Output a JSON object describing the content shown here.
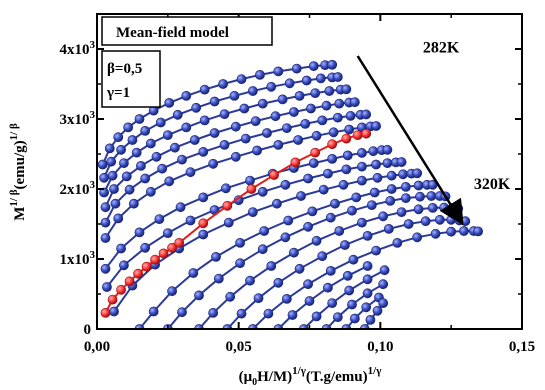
{
  "chart_data": {
    "type": "scatter",
    "title": "Mean-field model",
    "xlabel_parts": [
      "(μ",
      "0",
      "H/M)",
      "1/γ",
      "(T.g/emu)",
      "1/γ"
    ],
    "ylabel_parts": [
      "M",
      "1/ β",
      "(emu/g)",
      "1/ β"
    ],
    "xlim": [
      0.0,
      0.15
    ],
    "ylim": [
      0,
      4500
    ],
    "x_ticks": [
      0.0,
      0.05,
      0.1,
      0.15
    ],
    "x_tick_labels": [
      "0,00",
      "0,05",
      "0,10",
      "0,15"
    ],
    "y_ticks": [
      0,
      1000,
      2000,
      3000,
      4000
    ],
    "y_tick_labels": [
      "0",
      "1x10",
      "2x10",
      "3x10",
      "4x10"
    ],
    "y_tick_exponent": "3",
    "params": [
      "β=0,5",
      "γ=1"
    ],
    "annotations": [
      {
        "text": "282K",
        "x": 0.115,
        "y": 3950
      },
      {
        "text": "320K",
        "x": 0.133,
        "y": 2000
      }
    ],
    "arrow": {
      "x1": 0.092,
      "y1": 3900,
      "x2": 0.128,
      "y2": 1570
    },
    "colors": {
      "blue": "#2b3a99",
      "red": "#e02020",
      "marker_blue": "#3a4fc4",
      "marker_red": "#ff3b3b"
    },
    "series": [
      {
        "x": [
          0.002,
          0.0045,
          0.0075,
          0.011,
          0.015,
          0.02,
          0.0255,
          0.0315,
          0.038,
          0.0445,
          0.051,
          0.0575,
          0.064,
          0.0705,
          0.0765,
          0.0805,
          0.083
        ],
        "y": [
          2350,
          2580,
          2740,
          2880,
          3000,
          3120,
          3230,
          3330,
          3420,
          3500,
          3570,
          3630,
          3680,
          3720,
          3755,
          3770,
          3775
        ]
      },
      {
        "x": [
          0.0025,
          0.005,
          0.0085,
          0.0125,
          0.017,
          0.0225,
          0.0285,
          0.035,
          0.0415,
          0.0485,
          0.055,
          0.0615,
          0.068,
          0.074,
          0.079,
          0.083,
          0.085
        ],
        "y": [
          2160,
          2390,
          2560,
          2700,
          2830,
          2950,
          3060,
          3160,
          3250,
          3330,
          3400,
          3460,
          3510,
          3550,
          3580,
          3595,
          3600
        ]
      },
      {
        "x": [
          0.0025,
          0.0055,
          0.0095,
          0.014,
          0.019,
          0.025,
          0.0315,
          0.038,
          0.045,
          0.052,
          0.0585,
          0.0655,
          0.0715,
          0.077,
          0.082,
          0.086,
          0.088
        ],
        "y": [
          1950,
          2190,
          2370,
          2520,
          2650,
          2770,
          2880,
          2980,
          3070,
          3150,
          3220,
          3280,
          3330,
          3370,
          3400,
          3420,
          3425
        ]
      },
      {
        "x": [
          0.003,
          0.006,
          0.0105,
          0.0155,
          0.021,
          0.0275,
          0.0345,
          0.0415,
          0.049,
          0.056,
          0.063,
          0.0695,
          0.0755,
          0.081,
          0.0855,
          0.089,
          0.091
        ],
        "y": [
          1740,
          2000,
          2180,
          2330,
          2460,
          2590,
          2700,
          2800,
          2890,
          2970,
          3040,
          3100,
          3150,
          3190,
          3220,
          3235,
          3240
        ]
      },
      {
        "x": [
          0.003,
          0.0065,
          0.0115,
          0.017,
          0.023,
          0.03,
          0.0375,
          0.045,
          0.0525,
          0.06,
          0.067,
          0.0735,
          0.0795,
          0.085,
          0.0895,
          0.093,
          0.095
        ],
        "y": [
          1520,
          1790,
          1990,
          2150,
          2290,
          2420,
          2530,
          2630,
          2720,
          2800,
          2870,
          2930,
          2980,
          3020,
          3045,
          3060,
          3065
        ]
      },
      {
        "x": [
          0.003,
          0.0075,
          0.013,
          0.019,
          0.0255,
          0.033,
          0.041,
          0.049,
          0.0565,
          0.064,
          0.071,
          0.0775,
          0.0835,
          0.089,
          0.0935,
          0.0965,
          0.0985
        ],
        "y": [
          1300,
          1580,
          1790,
          1960,
          2110,
          2240,
          2360,
          2460,
          2550,
          2630,
          2700,
          2760,
          2810,
          2850,
          2880,
          2895,
          2900
        ]
      },
      {
        "x": [
          0.003,
          0.0055,
          0.0085,
          0.0115,
          0.0145,
          0.0175,
          0.0205,
          0.0235,
          0.0265,
          0.029,
          0.0375,
          0.046,
          0.0545,
          0.0625,
          0.07,
          0.077,
          0.083,
          0.088,
          0.092,
          0.095
        ],
        "y": [
          230,
          420,
          560,
          680,
          790,
          890,
          990,
          1080,
          1160,
          1230,
          1510,
          1760,
          2000,
          2200,
          2380,
          2520,
          2640,
          2720,
          2770,
          2790
        ],
        "highlight": true
      },
      {
        "x": [
          0.003,
          0.0085,
          0.015,
          0.022,
          0.0295,
          0.0375,
          0.0455,
          0.054,
          0.062,
          0.0695,
          0.0765,
          0.083,
          0.0885,
          0.0935,
          0.0975,
          0.1005,
          0.1025
        ],
        "y": [
          860,
          1150,
          1380,
          1570,
          1740,
          1880,
          2010,
          2120,
          2220,
          2300,
          2370,
          2430,
          2480,
          2515,
          2540,
          2555,
          2560
        ]
      },
      {
        "x": [
          0.0035,
          0.0095,
          0.017,
          0.025,
          0.033,
          0.0415,
          0.05,
          0.0585,
          0.0665,
          0.0745,
          0.0815,
          0.088,
          0.0935,
          0.0985,
          0.1025,
          0.1055,
          0.1075
        ],
        "y": [
          600,
          910,
          1160,
          1370,
          1550,
          1700,
          1840,
          1960,
          2060,
          2150,
          2220,
          2280,
          2320,
          2350,
          2370,
          2380,
          2385
        ]
      },
      {
        "x": [
          0.006,
          0.0125,
          0.0205,
          0.029,
          0.0375,
          0.0465,
          0.055,
          0.0635,
          0.072,
          0.08,
          0.087,
          0.0935,
          0.099,
          0.104,
          0.108,
          0.111,
          0.113
        ],
        "y": [
          250,
          620,
          920,
          1150,
          1350,
          1520,
          1670,
          1790,
          1900,
          1990,
          2060,
          2120,
          2160,
          2190,
          2210,
          2220,
          2225
        ]
      },
      {
        "x": [
          0.015,
          0.02,
          0.0265,
          0.034,
          0.042,
          0.0505,
          0.059,
          0.0675,
          0.076,
          0.084,
          0.0915,
          0.098,
          0.104,
          0.109,
          0.1135,
          0.1165,
          0.1185
        ],
        "y": [
          0,
          250,
          540,
          800,
          1030,
          1230,
          1400,
          1550,
          1680,
          1790,
          1880,
          1950,
          2000,
          2030,
          2050,
          2060,
          2060
        ]
      },
      {
        "x": [
          0.025,
          0.03,
          0.036,
          0.043,
          0.0505,
          0.0585,
          0.0665,
          0.0745,
          0.0825,
          0.09,
          0.097,
          0.1035,
          0.109,
          0.114,
          0.118,
          0.121,
          0.123
        ],
        "y": [
          0,
          240,
          480,
          720,
          940,
          1140,
          1310,
          1460,
          1590,
          1690,
          1770,
          1830,
          1870,
          1890,
          1900,
          1900,
          1895
        ]
      },
      {
        "x": [
          0.036,
          0.041,
          0.047,
          0.054,
          0.0615,
          0.0695,
          0.0775,
          0.0855,
          0.0935,
          0.101,
          0.1075,
          0.1135,
          0.1185,
          0.1225,
          0.1255,
          0.1275
        ],
        "y": [
          0,
          230,
          460,
          690,
          900,
          1090,
          1260,
          1400,
          1520,
          1610,
          1670,
          1710,
          1730,
          1735,
          1730,
          1720
        ]
      },
      {
        "x": [
          0.046,
          0.051,
          0.057,
          0.064,
          0.0715,
          0.0795,
          0.0875,
          0.0955,
          0.103,
          0.11,
          0.116,
          0.121,
          0.125,
          0.128,
          0.13
        ],
        "y": [
          0,
          220,
          440,
          660,
          860,
          1040,
          1200,
          1330,
          1430,
          1500,
          1540,
          1560,
          1560,
          1550,
          1540
        ]
      },
      {
        "x": [
          0.055,
          0.0605,
          0.067,
          0.0745,
          0.0825,
          0.0905,
          0.0985,
          0.106,
          0.113,
          0.1195,
          0.125,
          0.1295,
          0.133,
          0.1345
        ],
        "y": [
          0,
          220,
          430,
          640,
          830,
          990,
          1120,
          1230,
          1310,
          1360,
          1390,
          1400,
          1400,
          1395
        ]
      },
      {
        "x": [
          0.064,
          0.069,
          0.075,
          0.0815,
          0.0885,
          0.0955
        ],
        "y": [
          0,
          200,
          400,
          590,
          760,
          900
        ]
      },
      {
        "x": [
          0.073,
          0.0775,
          0.083,
          0.089,
          0.0955,
          0.1015
        ],
        "y": [
          0,
          180,
          370,
          550,
          710,
          840
        ]
      },
      {
        "x": [
          0.081,
          0.085,
          0.09,
          0.0955,
          0.101
        ],
        "y": [
          0,
          170,
          350,
          510,
          640
        ]
      },
      {
        "x": [
          0.088,
          0.091,
          0.095,
          0.0995
        ],
        "y": [
          0,
          150,
          310,
          450
        ]
      },
      {
        "x": [
          0.0945,
          0.0965,
          0.099,
          0.101
        ],
        "y": [
          0,
          130,
          260,
          370
        ]
      }
    ]
  }
}
